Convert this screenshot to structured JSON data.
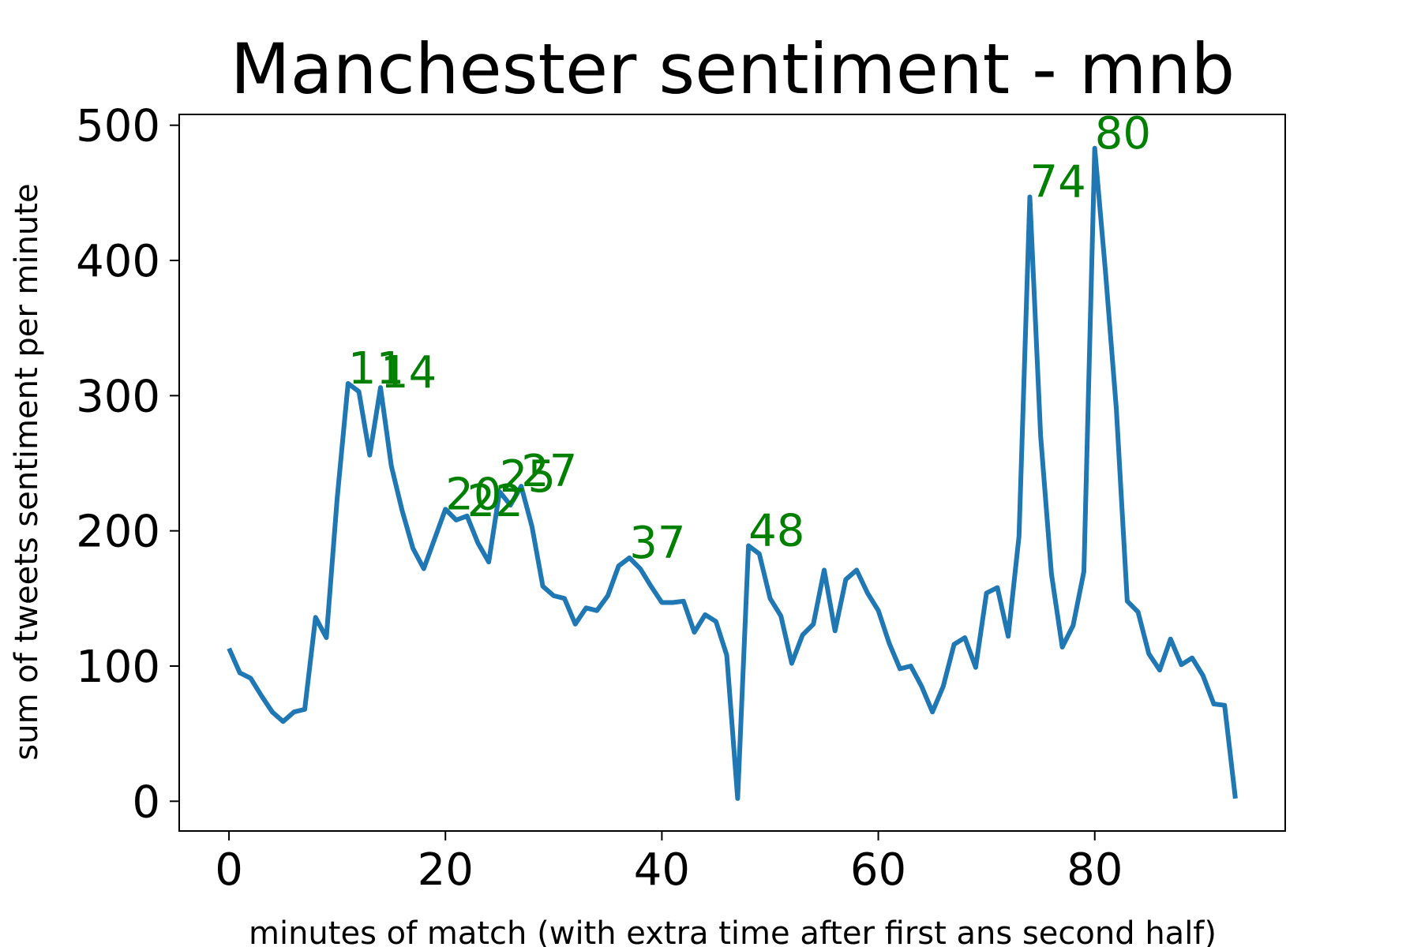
{
  "chart_data": {
    "type": "line",
    "title": "Manchester sentiment - mnb",
    "xlabel": "minutes of match (with extra time after first ans second half)",
    "ylabel": "sum of tweets sentiment per minute",
    "xlim": [
      -4.6,
      97.6
    ],
    "ylim": [
      -22,
      508
    ],
    "xticks": [
      0,
      20,
      40,
      60,
      80
    ],
    "yticks": [
      0,
      100,
      200,
      300,
      400,
      500
    ],
    "grid": false,
    "line_color": "#1f77b4",
    "annotation_color": "#008000",
    "x": [
      0,
      1,
      2,
      3,
      4,
      5,
      6,
      7,
      8,
      9,
      10,
      11,
      12,
      13,
      14,
      15,
      16,
      17,
      18,
      19,
      20,
      21,
      22,
      23,
      24,
      25,
      26,
      27,
      28,
      29,
      30,
      31,
      32,
      33,
      34,
      35,
      36,
      37,
      38,
      39,
      40,
      41,
      42,
      43,
      44,
      45,
      46,
      47,
      48,
      49,
      50,
      51,
      52,
      53,
      54,
      55,
      56,
      57,
      58,
      59,
      60,
      61,
      62,
      63,
      64,
      65,
      66,
      67,
      68,
      69,
      70,
      71,
      72,
      73,
      74,
      75,
      76,
      77,
      78,
      79,
      80,
      81,
      82,
      83,
      84,
      85,
      86,
      87,
      88,
      89,
      90,
      91,
      92,
      93
    ],
    "y": [
      113,
      95,
      91,
      78,
      66,
      59,
      66,
      68,
      136,
      121,
      224,
      309,
      303,
      256,
      306,
      248,
      215,
      187,
      172,
      194,
      216,
      208,
      211,
      191,
      177,
      229,
      219,
      233,
      203,
      159,
      152,
      150,
      131,
      143,
      141,
      152,
      174,
      180,
      172,
      159,
      147,
      147,
      148,
      125,
      138,
      133,
      108,
      2,
      189,
      183,
      150,
      137,
      102,
      123,
      131,
      171,
      126,
      164,
      171,
      154,
      141,
      117,
      98,
      100,
      85,
      66,
      85,
      116,
      121,
      99,
      154,
      158,
      122,
      196,
      447,
      270,
      168,
      114,
      130,
      170,
      483,
      391,
      290,
      148,
      140,
      109,
      97,
      120,
      101,
      106,
      93,
      72,
      71,
      2
    ],
    "annotations": [
      {
        "text": "11",
        "x": 11,
        "y": 309
      },
      {
        "text": "14",
        "x": 14,
        "y": 306
      },
      {
        "text": "20",
        "x": 20,
        "y": 216
      },
      {
        "text": "22",
        "x": 22,
        "y": 211
      },
      {
        "text": "25",
        "x": 25,
        "y": 229
      },
      {
        "text": "27",
        "x": 27,
        "y": 233
      },
      {
        "text": "37",
        "x": 37,
        "y": 180
      },
      {
        "text": "48",
        "x": 48,
        "y": 189
      },
      {
        "text": "74",
        "x": 74,
        "y": 447
      },
      {
        "text": "80",
        "x": 80,
        "y": 483
      }
    ]
  }
}
